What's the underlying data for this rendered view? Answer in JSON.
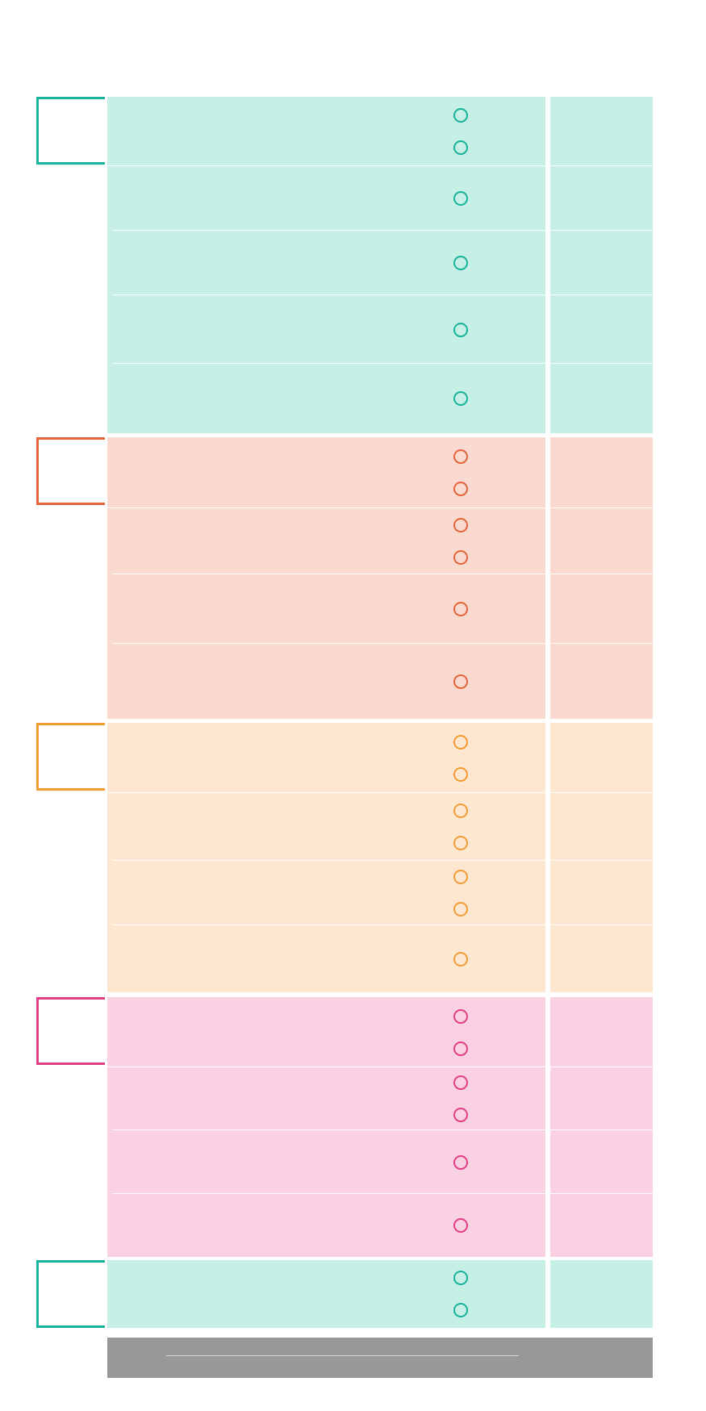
{
  "colors": {
    "teal": {
      "accent": "#17b29b",
      "fill": "#c6efe5"
    },
    "red": {
      "accent": "#e66239",
      "fill": "#fadad0"
    },
    "orange": {
      "accent": "#f29b35",
      "fill": "#fde7d1"
    },
    "pink": {
      "accent": "#e23e86",
      "fill": "#f9d1e3"
    },
    "footer": "#979999"
  },
  "sections": [
    {
      "theme": "teal",
      "rows": [
        {
          "options": 2
        },
        {
          "options": 1
        },
        {
          "options": 1
        },
        {
          "options": 1
        },
        {
          "options": 1
        }
      ]
    },
    {
      "theme": "red",
      "rows": [
        {
          "options": 2
        },
        {
          "options": 2
        },
        {
          "options": 1
        },
        {
          "options": 1
        }
      ]
    },
    {
      "theme": "orange",
      "rows": [
        {
          "options": 2
        },
        {
          "options": 2
        },
        {
          "options": 2
        },
        {
          "options": 1
        }
      ]
    },
    {
      "theme": "pink",
      "rows": [
        {
          "options": 2
        },
        {
          "options": 2
        },
        {
          "options": 1
        },
        {
          "options": 1
        }
      ]
    },
    {
      "theme": "teal",
      "rows": [
        {
          "options": 2
        }
      ]
    }
  ]
}
